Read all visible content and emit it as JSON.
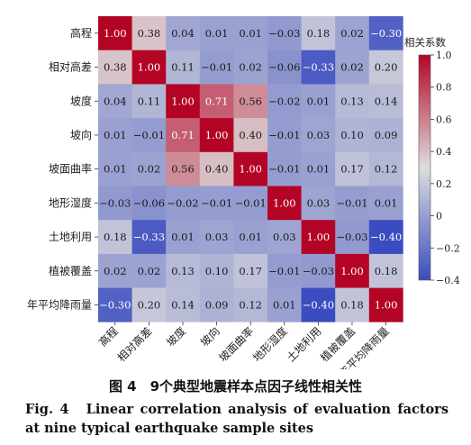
{
  "chart_data": {
    "type": "heatmap",
    "categories": [
      "高程",
      "相对高差",
      "坡度",
      "坡向",
      "坡面曲率",
      "地形湿度",
      "土地利用",
      "植被覆盖",
      "年平均降雨量"
    ],
    "values": [
      [
        1.0,
        0.38,
        0.04,
        0.01,
        0.01,
        -0.03,
        0.18,
        0.02,
        -0.3
      ],
      [
        0.38,
        1.0,
        0.11,
        -0.01,
        0.02,
        -0.06,
        -0.33,
        0.02,
        0.2
      ],
      [
        0.04,
        0.11,
        1.0,
        0.71,
        0.56,
        -0.02,
        0.01,
        0.13,
        0.14
      ],
      [
        0.01,
        -0.01,
        0.71,
        1.0,
        0.4,
        -0.01,
        0.03,
        0.1,
        0.09
      ],
      [
        0.01,
        0.02,
        0.56,
        0.4,
        1.0,
        -0.01,
        0.01,
        0.17,
        0.12
      ],
      [
        -0.03,
        -0.06,
        -0.02,
        -0.01,
        -0.01,
        1.0,
        0.03,
        -0.01,
        0.01
      ],
      [
        0.18,
        -0.33,
        0.01,
        0.03,
        0.01,
        0.03,
        1.0,
        -0.03,
        -0.4
      ],
      [
        0.02,
        0.02,
        0.13,
        0.1,
        0.17,
        -0.01,
        -0.03,
        1.0,
        0.18
      ],
      [
        -0.3,
        0.2,
        0.14,
        0.09,
        0.12,
        0.01,
        -0.4,
        0.18,
        1.0
      ]
    ],
    "colorbar": {
      "title": "相关系数",
      "range": [
        -0.4,
        1.0
      ],
      "ticks": [
        1.0,
        0.8,
        0.6,
        0.4,
        0.2,
        0,
        -0.2,
        -0.4
      ],
      "tick_labels": [
        "1.0",
        "0.8",
        "0.6",
        "0.4",
        "0.2",
        "0",
        "−0.2",
        "−0.4"
      ],
      "colors": [
        "#3b4cc0",
        "#dddddd",
        "#b40426"
      ]
    }
  },
  "caption": {
    "cn": "图 4　9个典型地震样本点因子线性相关性",
    "en": "Fig. 4　Linear correlation analysis of evaluation factors at nine typical earthquake sample sites"
  }
}
